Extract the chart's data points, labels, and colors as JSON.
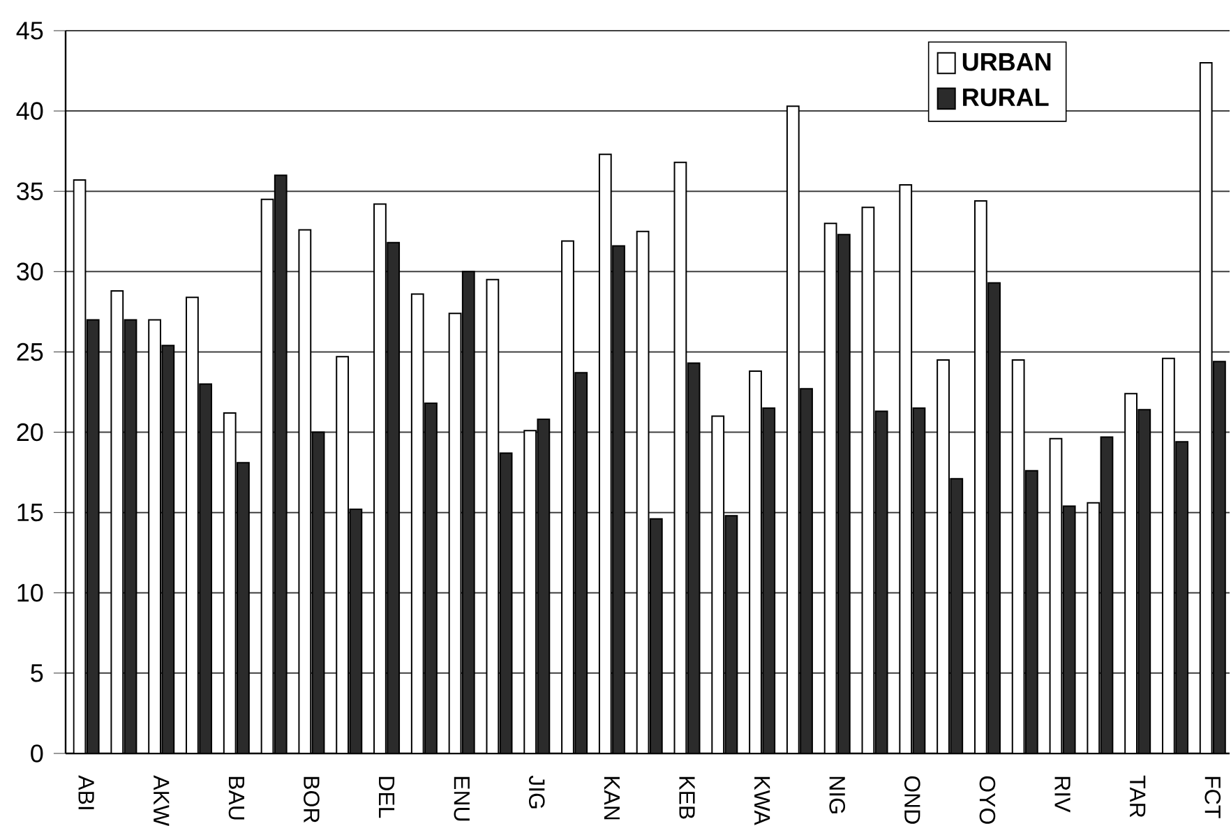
{
  "chart_data": {
    "type": "bar",
    "categories": [
      "ABI",
      null,
      "AKW",
      null,
      "BAU",
      null,
      "BOR",
      null,
      "DEL",
      null,
      "ENU",
      null,
      "JIG",
      null,
      "KAN",
      null,
      "KEB",
      null,
      "KWA",
      null,
      "NIG",
      null,
      "OND",
      null,
      "OYO",
      null,
      "RIV",
      null,
      "TAR",
      null,
      "FCT"
    ],
    "series": [
      {
        "name": "URBAN",
        "color": "#ffffff",
        "values": [
          35.7,
          28.8,
          27.0,
          28.4,
          21.2,
          34.5,
          32.6,
          24.7,
          34.2,
          28.6,
          27.4,
          29.5,
          20.1,
          31.9,
          37.3,
          32.5,
          36.8,
          21.0,
          23.8,
          40.3,
          33.0,
          34.0,
          35.4,
          24.5,
          34.4,
          24.5,
          19.6,
          15.6,
          22.4,
          24.6,
          43.0
        ]
      },
      {
        "name": "RURAL",
        "color": "#2b2b2b",
        "values": [
          27.0,
          27.0,
          25.4,
          23.0,
          18.1,
          36.0,
          20.0,
          15.2,
          31.8,
          21.8,
          30.0,
          18.7,
          20.8,
          23.7,
          31.6,
          14.6,
          24.3,
          14.8,
          21.5,
          22.7,
          32.3,
          21.3,
          21.5,
          17.1,
          29.3,
          17.6,
          15.4,
          19.7,
          21.4,
          19.4,
          24.4
        ]
      }
    ],
    "ylim": [
      0,
      45
    ],
    "yticks": [
      0,
      5,
      10,
      15,
      20,
      25,
      30,
      35,
      40,
      45
    ],
    "grid": "y",
    "legend": "top right"
  }
}
